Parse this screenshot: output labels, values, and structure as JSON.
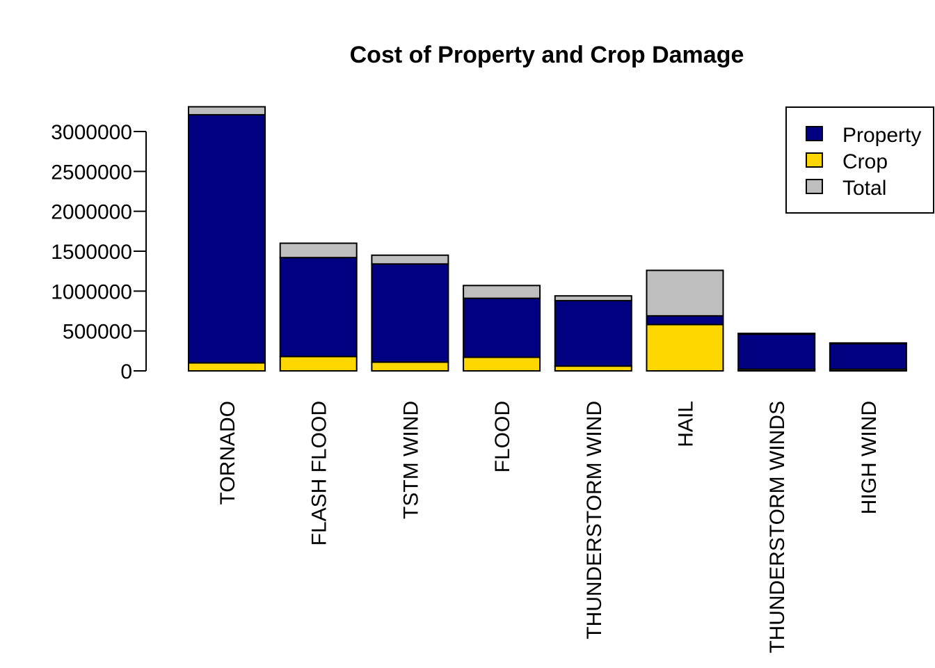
{
  "chart_data": {
    "type": "bar",
    "stacked": true,
    "title": "Cost of Property and Crop Damage",
    "xlabel": "",
    "ylabel": "",
    "ylim": [
      0,
      3300000
    ],
    "yticks": [
      0,
      500000,
      1000000,
      1500000,
      2000000,
      2500000,
      3000000
    ],
    "ytick_labels": [
      "0",
      "500000",
      "1000000",
      "1500000",
      "2000000",
      "2500000",
      "3000000"
    ],
    "categories": [
      "TORNADO",
      "FLASH FLOOD",
      "TSTM WIND",
      "FLOOD",
      "THUNDERSTORM WIND",
      "HAIL",
      "THUNDERSTORM WINDS",
      "HIGH WIND"
    ],
    "series": [
      {
        "name": "Crop",
        "color": "#FFD700",
        "values": [
          100000,
          180000,
          110000,
          170000,
          60000,
          580000,
          20000,
          20000
        ]
      },
      {
        "name": "Property",
        "color": "#000080",
        "values": [
          3110000,
          1240000,
          1230000,
          740000,
          820000,
          110000,
          440000,
          320000
        ]
      },
      {
        "name": "Total",
        "color": "#BEBEBE",
        "values": [
          100000,
          180000,
          110000,
          160000,
          60000,
          570000,
          10000,
          10000
        ]
      }
    ],
    "legend": {
      "position": "top-right",
      "items": [
        {
          "label": "Property",
          "color": "#000080"
        },
        {
          "label": "Crop",
          "color": "#FFD700"
        },
        {
          "label": "Total",
          "color": "#BEBEBE"
        }
      ]
    },
    "grid": false
  }
}
